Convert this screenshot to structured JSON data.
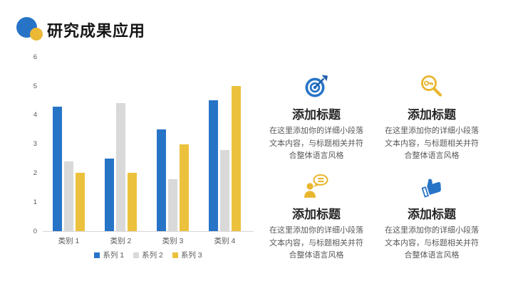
{
  "slide": {
    "title": "研究成果应用",
    "accent_blue": "#2774C7",
    "accent_yellow": "#ECB937"
  },
  "chart_data": {
    "type": "bar",
    "title": "",
    "xlabel": "",
    "ylabel": "",
    "categories": [
      "类别 1",
      "类别 2",
      "类别 3",
      "类别 4"
    ],
    "series": [
      {
        "name": "系列 1",
        "color": "#2774C7",
        "values": [
          4.3,
          2.5,
          3.5,
          4.5
        ]
      },
      {
        "name": "系列 2",
        "color": "#D9D9D9",
        "values": [
          2.4,
          4.4,
          1.8,
          2.8
        ]
      },
      {
        "name": "系列 3",
        "color": "#ECC13D",
        "values": [
          2.0,
          2.0,
          3.0,
          5.0
        ]
      }
    ],
    "ylim": [
      0,
      6
    ],
    "yticks": [
      0,
      1,
      2,
      3,
      4,
      5,
      6
    ],
    "grid": false,
    "legend_position": "bottom"
  },
  "features": [
    {
      "icon": "target-arrow-icon",
      "icon_color": "#2774C7",
      "title": "添加标题",
      "body": "在这里添加你的详细小段落文本内容，与标题相关并符合整体语言风格"
    },
    {
      "icon": "key-search-icon",
      "icon_color": "#E9B62F",
      "title": "添加标题",
      "body": "在这里添加你的详细小段落文本内容，与标题相关并符合整体语言风格"
    },
    {
      "icon": "person-speech-icon",
      "icon_color": "#E9B62F",
      "title": "添加标题",
      "body": "在这里添加你的详细小段落文本内容，与标题相关并符合整体语言风格"
    },
    {
      "icon": "thumbs-up-icon",
      "icon_color": "#2774C7",
      "title": "添加标题",
      "body": "在这里添加你的详细小段落文本内容，与标题相关并符合整体语言风格"
    }
  ]
}
